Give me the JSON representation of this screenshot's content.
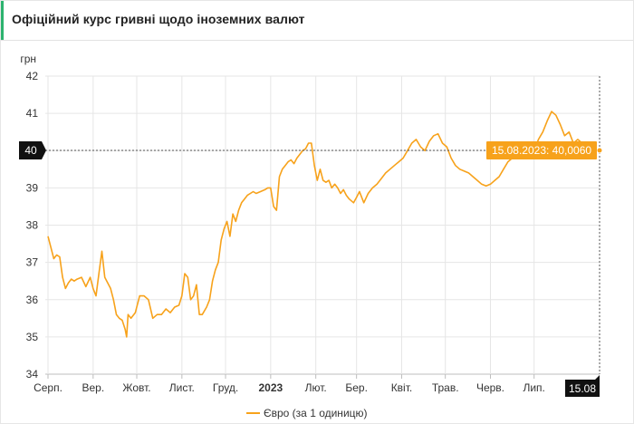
{
  "header": {
    "title": "Офіційний курс гривні щодо іноземних валют"
  },
  "colors": {
    "accent": "#2db36f",
    "series": "#f7a21b",
    "marker_dark": "#111111"
  },
  "chart_data": {
    "type": "line",
    "ylabel": "грн",
    "ylim": [
      34,
      42
    ],
    "yticks": [
      34,
      35,
      36,
      37,
      38,
      39,
      40,
      41,
      42
    ],
    "grid": true,
    "legend": "bottom-center",
    "xticks": [
      {
        "label": "Серп.",
        "date": "2022-08-01",
        "bold": false
      },
      {
        "label": "Вер.",
        "date": "2022-09-01",
        "bold": false
      },
      {
        "label": "Жовт.",
        "date": "2022-10-01",
        "bold": false
      },
      {
        "label": "Лист.",
        "date": "2022-11-01",
        "bold": false
      },
      {
        "label": "Груд.",
        "date": "2022-12-01",
        "bold": false
      },
      {
        "label": "2023",
        "date": "2023-01-01",
        "bold": true
      },
      {
        "label": "Лют.",
        "date": "2023-02-01",
        "bold": false
      },
      {
        "label": "Бер.",
        "date": "2023-03-01",
        "bold": false
      },
      {
        "label": "Квіт.",
        "date": "2023-04-01",
        "bold": false
      },
      {
        "label": "Трав.",
        "date": "2023-05-01",
        "bold": false
      },
      {
        "label": "Черв.",
        "date": "2023-06-01",
        "bold": false
      },
      {
        "label": "Лип.",
        "date": "2023-07-01",
        "bold": false
      }
    ],
    "crosshair": {
      "date": "2023-08-15",
      "value": 40.006,
      "tooltip": "15.08.2023: 40,0060",
      "x_label": "15.08",
      "y_label": "40"
    },
    "series": [
      {
        "name": "Євро (за 1 одиницю)",
        "points": [
          [
            "2022-08-01",
            37.7
          ],
          [
            "2022-08-03",
            37.4
          ],
          [
            "2022-08-05",
            37.1
          ],
          [
            "2022-08-07",
            37.2
          ],
          [
            "2022-08-09",
            37.15
          ],
          [
            "2022-08-11",
            36.6
          ],
          [
            "2022-08-13",
            36.3
          ],
          [
            "2022-08-15",
            36.45
          ],
          [
            "2022-08-17",
            36.55
          ],
          [
            "2022-08-19",
            36.5
          ],
          [
            "2022-08-21",
            36.55
          ],
          [
            "2022-08-24",
            36.6
          ],
          [
            "2022-08-27",
            36.35
          ],
          [
            "2022-08-30",
            36.6
          ],
          [
            "2022-09-01",
            36.3
          ],
          [
            "2022-09-03",
            36.1
          ],
          [
            "2022-09-05",
            36.7
          ],
          [
            "2022-09-07",
            37.3
          ],
          [
            "2022-09-09",
            36.6
          ],
          [
            "2022-09-11",
            36.45
          ],
          [
            "2022-09-13",
            36.3
          ],
          [
            "2022-09-15",
            36.0
          ],
          [
            "2022-09-17",
            35.6
          ],
          [
            "2022-09-19",
            35.5
          ],
          [
            "2022-09-21",
            35.45
          ],
          [
            "2022-09-23",
            35.2
          ],
          [
            "2022-09-24",
            35.0
          ],
          [
            "2022-09-25",
            35.6
          ],
          [
            "2022-09-27",
            35.5
          ],
          [
            "2022-09-30",
            35.65
          ],
          [
            "2022-10-03",
            36.1
          ],
          [
            "2022-10-06",
            36.1
          ],
          [
            "2022-10-09",
            36.0
          ],
          [
            "2022-10-12",
            35.5
          ],
          [
            "2022-10-15",
            35.6
          ],
          [
            "2022-10-18",
            35.6
          ],
          [
            "2022-10-21",
            35.75
          ],
          [
            "2022-10-24",
            35.65
          ],
          [
            "2022-10-27",
            35.8
          ],
          [
            "2022-10-30",
            35.85
          ],
          [
            "2022-11-01",
            36.1
          ],
          [
            "2022-11-03",
            36.7
          ],
          [
            "2022-11-05",
            36.6
          ],
          [
            "2022-11-07",
            36.0
          ],
          [
            "2022-11-09",
            36.1
          ],
          [
            "2022-11-11",
            36.4
          ],
          [
            "2022-11-13",
            35.6
          ],
          [
            "2022-11-15",
            35.6
          ],
          [
            "2022-11-18",
            35.8
          ],
          [
            "2022-11-20",
            36.0
          ],
          [
            "2022-11-22",
            36.5
          ],
          [
            "2022-11-24",
            36.8
          ],
          [
            "2022-11-26",
            37.0
          ],
          [
            "2022-11-28",
            37.6
          ],
          [
            "2022-11-30",
            37.9
          ],
          [
            "2022-12-02",
            38.1
          ],
          [
            "2022-12-04",
            37.7
          ],
          [
            "2022-12-06",
            38.3
          ],
          [
            "2022-12-08",
            38.1
          ],
          [
            "2022-12-10",
            38.4
          ],
          [
            "2022-12-12",
            38.6
          ],
          [
            "2022-12-14",
            38.7
          ],
          [
            "2022-12-16",
            38.8
          ],
          [
            "2022-12-18",
            38.85
          ],
          [
            "2022-12-20",
            38.9
          ],
          [
            "2022-12-22",
            38.85
          ],
          [
            "2022-12-25",
            38.9
          ],
          [
            "2022-12-28",
            38.95
          ],
          [
            "2022-12-30",
            39.0
          ],
          [
            "2023-01-01",
            39.0
          ],
          [
            "2023-01-03",
            38.5
          ],
          [
            "2023-01-05",
            38.4
          ],
          [
            "2023-01-07",
            39.3
          ],
          [
            "2023-01-09",
            39.5
          ],
          [
            "2023-01-11",
            39.6
          ],
          [
            "2023-01-13",
            39.7
          ],
          [
            "2023-01-15",
            39.75
          ],
          [
            "2023-01-17",
            39.65
          ],
          [
            "2023-01-19",
            39.8
          ],
          [
            "2023-01-21",
            39.9
          ],
          [
            "2023-01-23",
            40.0
          ],
          [
            "2023-01-25",
            40.05
          ],
          [
            "2023-01-27",
            40.2
          ],
          [
            "2023-01-29",
            40.2
          ],
          [
            "2023-01-31",
            39.6
          ],
          [
            "2023-02-02",
            39.2
          ],
          [
            "2023-02-04",
            39.5
          ],
          [
            "2023-02-06",
            39.2
          ],
          [
            "2023-02-08",
            39.15
          ],
          [
            "2023-02-10",
            39.2
          ],
          [
            "2023-02-12",
            39.0
          ],
          [
            "2023-02-14",
            39.1
          ],
          [
            "2023-02-16",
            39.0
          ],
          [
            "2023-02-18",
            38.85
          ],
          [
            "2023-02-20",
            38.95
          ],
          [
            "2023-02-22",
            38.8
          ],
          [
            "2023-02-24",
            38.7
          ],
          [
            "2023-02-27",
            38.6
          ],
          [
            "2023-03-01",
            38.75
          ],
          [
            "2023-03-03",
            38.9
          ],
          [
            "2023-03-06",
            38.6
          ],
          [
            "2023-03-09",
            38.85
          ],
          [
            "2023-03-12",
            39.0
          ],
          [
            "2023-03-15",
            39.1
          ],
          [
            "2023-03-18",
            39.25
          ],
          [
            "2023-03-21",
            39.4
          ],
          [
            "2023-03-24",
            39.5
          ],
          [
            "2023-03-27",
            39.6
          ],
          [
            "2023-03-30",
            39.7
          ],
          [
            "2023-04-02",
            39.8
          ],
          [
            "2023-04-05",
            40.0
          ],
          [
            "2023-04-08",
            40.2
          ],
          [
            "2023-04-11",
            40.3
          ],
          [
            "2023-04-14",
            40.1
          ],
          [
            "2023-04-17",
            40.0
          ],
          [
            "2023-04-20",
            40.25
          ],
          [
            "2023-04-23",
            40.4
          ],
          [
            "2023-04-26",
            40.45
          ],
          [
            "2023-04-29",
            40.2
          ],
          [
            "2023-05-02",
            40.1
          ],
          [
            "2023-05-05",
            39.8
          ],
          [
            "2023-05-08",
            39.6
          ],
          [
            "2023-05-11",
            39.5
          ],
          [
            "2023-05-14",
            39.45
          ],
          [
            "2023-05-17",
            39.4
          ],
          [
            "2023-05-20",
            39.3
          ],
          [
            "2023-05-23",
            39.2
          ],
          [
            "2023-05-26",
            39.1
          ],
          [
            "2023-05-29",
            39.05
          ],
          [
            "2023-06-01",
            39.1
          ],
          [
            "2023-06-04",
            39.2
          ],
          [
            "2023-06-07",
            39.3
          ],
          [
            "2023-06-10",
            39.5
          ],
          [
            "2023-06-13",
            39.7
          ],
          [
            "2023-06-16",
            39.8
          ],
          [
            "2023-06-19",
            39.9
          ],
          [
            "2023-06-22",
            40.0
          ],
          [
            "2023-06-25",
            39.95
          ],
          [
            "2023-06-28",
            40.1
          ],
          [
            "2023-07-01",
            40.0
          ],
          [
            "2023-07-04",
            40.3
          ],
          [
            "2023-07-07",
            40.5
          ],
          [
            "2023-07-10",
            40.8
          ],
          [
            "2023-07-13",
            41.05
          ],
          [
            "2023-07-16",
            40.95
          ],
          [
            "2023-07-19",
            40.7
          ],
          [
            "2023-07-22",
            40.4
          ],
          [
            "2023-07-25",
            40.5
          ],
          [
            "2023-07-28",
            40.2
          ],
          [
            "2023-07-31",
            40.3
          ],
          [
            "2023-08-03",
            40.2
          ],
          [
            "2023-08-06",
            40.15
          ],
          [
            "2023-08-09",
            40.1
          ],
          [
            "2023-08-12",
            40.05
          ],
          [
            "2023-08-15",
            40.006
          ]
        ]
      }
    ]
  }
}
